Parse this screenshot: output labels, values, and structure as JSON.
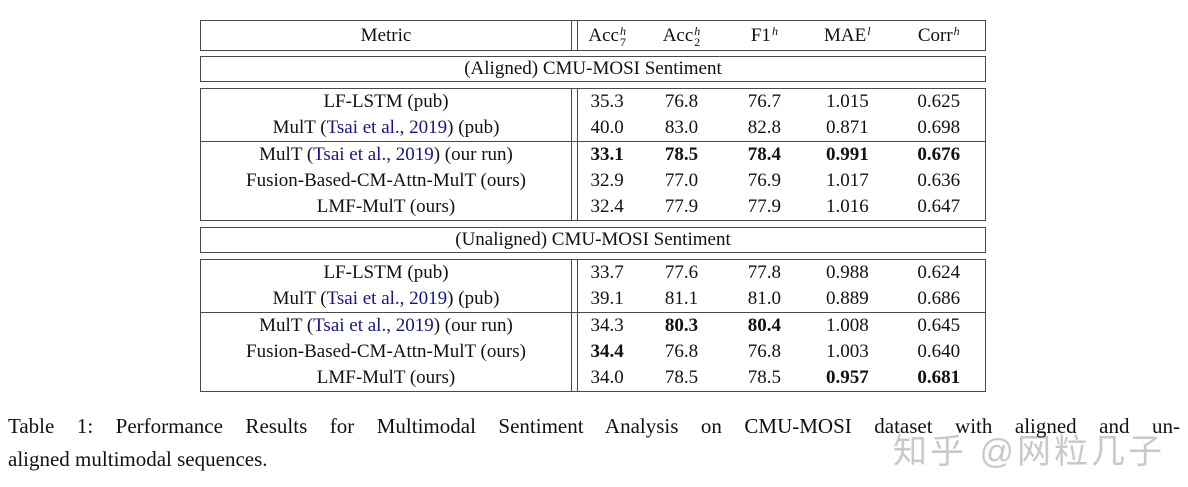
{
  "table": {
    "header": {
      "metric_label": "Metric",
      "columns": [
        {
          "base": "Acc",
          "sub": "7",
          "sup": "h"
        },
        {
          "base": "Acc",
          "sub": "2",
          "sup": "h"
        },
        {
          "base": "F1",
          "sub": "",
          "sup": "h"
        },
        {
          "base": "MAE",
          "sub": "",
          "sup": "l"
        },
        {
          "base": "Corr",
          "sub": "",
          "sup": "h"
        }
      ]
    },
    "sections": [
      {
        "title": "(Aligned) CMU-MOSI Sentiment",
        "rows": [
          {
            "pre": "LF-LSTM (pub)",
            "cite": "",
            "post": "",
            "group": "pub",
            "values": [
              "35.3",
              "76.8",
              "76.7",
              "1.015",
              "0.625"
            ],
            "bold": [
              false,
              false,
              false,
              false,
              false
            ]
          },
          {
            "pre": "MulT (",
            "cite": "Tsai et al., 2019",
            "post": ") (pub)",
            "group": "pub",
            "values": [
              "40.0",
              "83.0",
              "82.8",
              "0.871",
              "0.698"
            ],
            "bold": [
              false,
              false,
              false,
              false,
              false
            ]
          },
          {
            "pre": "MulT (",
            "cite": "Tsai et al., 2019",
            "post": ") (our run)",
            "group": "ours",
            "values": [
              "33.1",
              "78.5",
              "78.4",
              "0.991",
              "0.676"
            ],
            "bold": [
              true,
              true,
              true,
              true,
              true
            ]
          },
          {
            "pre": "Fusion-Based-CM-Attn-MulT (ours)",
            "cite": "",
            "post": "",
            "group": "ours",
            "values": [
              "32.9",
              "77.0",
              "76.9",
              "1.017",
              "0.636"
            ],
            "bold": [
              false,
              false,
              false,
              false,
              false
            ]
          },
          {
            "pre": "LMF-MulT (ours)",
            "cite": "",
            "post": "",
            "group": "ours",
            "values": [
              "32.4",
              "77.9",
              "77.9",
              "1.016",
              "0.647"
            ],
            "bold": [
              false,
              false,
              false,
              false,
              false
            ]
          }
        ]
      },
      {
        "title": "(Unaligned) CMU-MOSI Sentiment",
        "rows": [
          {
            "pre": "LF-LSTM (pub)",
            "cite": "",
            "post": "",
            "group": "pub",
            "values": [
              "33.7",
              "77.6",
              "77.8",
              "0.988",
              "0.624"
            ],
            "bold": [
              false,
              false,
              false,
              false,
              false
            ]
          },
          {
            "pre": "MulT (",
            "cite": "Tsai et al., 2019",
            "post": ") (pub)",
            "group": "pub",
            "values": [
              "39.1",
              "81.1",
              "81.0",
              "0.889",
              "0.686"
            ],
            "bold": [
              false,
              false,
              false,
              false,
              false
            ]
          },
          {
            "pre": "MulT (",
            "cite": "Tsai et al., 2019",
            "post": ") (our run)",
            "group": "ours",
            "values": [
              "34.3",
              "80.3",
              "80.4",
              "1.008",
              "0.645"
            ],
            "bold": [
              false,
              true,
              true,
              false,
              false
            ]
          },
          {
            "pre": "Fusion-Based-CM-Attn-MulT (ours)",
            "cite": "",
            "post": "",
            "group": "ours",
            "values": [
              "34.4",
              "76.8",
              "76.8",
              "1.003",
              "0.640"
            ],
            "bold": [
              true,
              false,
              false,
              false,
              false
            ]
          },
          {
            "pre": "LMF-MulT (ours)",
            "cite": "",
            "post": "",
            "group": "ours",
            "values": [
              "34.0",
              "78.5",
              "78.5",
              "0.957",
              "0.681"
            ],
            "bold": [
              false,
              false,
              false,
              true,
              true
            ]
          }
        ]
      }
    ]
  },
  "caption": {
    "line1": "Table 1: Performance Results for Multimodal Sentiment Analysis on CMU-MOSI dataset with aligned and un-",
    "line2": "aligned multimodal sequences."
  },
  "watermark": {
    "text": "知乎 @网粒几子"
  },
  "colors": {
    "citation": "#14148c",
    "border": "#4a4a4a",
    "watermark": "#c9c9c9",
    "text": "#111111"
  }
}
